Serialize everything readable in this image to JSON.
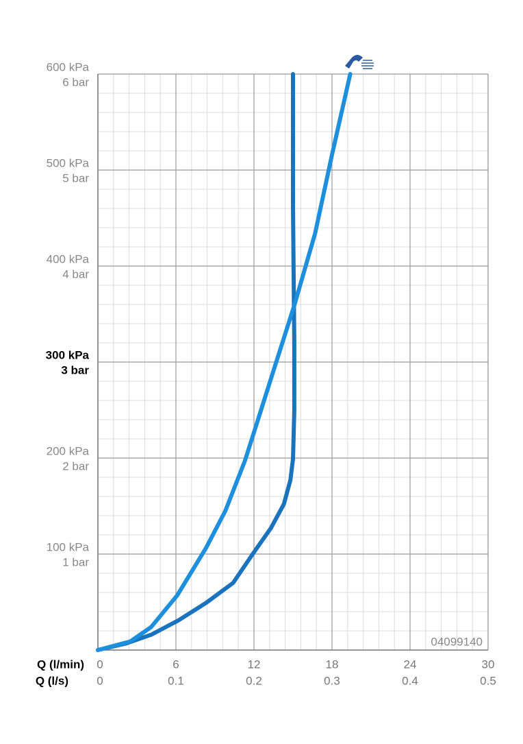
{
  "chart_data": {
    "type": "line",
    "x_label": "Q (l/min)",
    "x2_label": "Q (l/s)",
    "xlim": [
      0,
      30
    ],
    "xticks": [
      0,
      6,
      12,
      18,
      24,
      30
    ],
    "x2lim": [
      0,
      0.5
    ],
    "x2ticks": [
      0,
      0.1,
      0.2,
      0.3,
      0.4,
      0.5
    ],
    "ylim": [
      0,
      600
    ],
    "yticks": [
      {
        "value": 100,
        "label": "100 kPa"
      },
      {
        "value": 200,
        "label": "200 kPa"
      },
      {
        "value": 300,
        "label": "300 kPa"
      },
      {
        "value": 400,
        "label": "400 kPa"
      },
      {
        "value": 500,
        "label": "500 kPa"
      },
      {
        "value": 600,
        "label": "600 kPa"
      }
    ],
    "y2lim": [
      0,
      6
    ],
    "y2ticks": [
      {
        "value": 1,
        "label": "1 bar"
      },
      {
        "value": 2,
        "label": "2 bar"
      },
      {
        "value": 3,
        "label": "3 bar"
      },
      {
        "value": 4,
        "label": "4 bar"
      },
      {
        "value": 5,
        "label": "5 bar"
      },
      {
        "value": 6,
        "label": "6 bar"
      }
    ],
    "highlight_ytick": 300,
    "grid": true,
    "xminor_step": 1.2,
    "yminor_step": 20,
    "annotation": "04099140",
    "series": [
      {
        "color": "#1a73bd",
        "x": [
          0,
          2.2,
          4.1,
          6.2,
          8.3,
          10.4,
          11.9,
          13.3,
          14.3,
          14.8,
          15.0,
          15.1,
          15.1,
          15.05,
          15.0,
          15.0
        ],
        "values": [
          0,
          7,
          16,
          31,
          49,
          70,
          100,
          127,
          152,
          177,
          199,
          249,
          320,
          391,
          463,
          600
        ]
      },
      {
        "color": "#1e8fdc",
        "x": [
          0,
          2.5,
          4.1,
          6.1,
          8.3,
          9.8,
          11.3,
          12.1,
          13.5,
          15.1,
          16.7,
          18.0,
          19.4
        ],
        "values": [
          0,
          9,
          24,
          57,
          106,
          145,
          197,
          231,
          291,
          359,
          434,
          516,
          600
        ]
      }
    ]
  }
}
